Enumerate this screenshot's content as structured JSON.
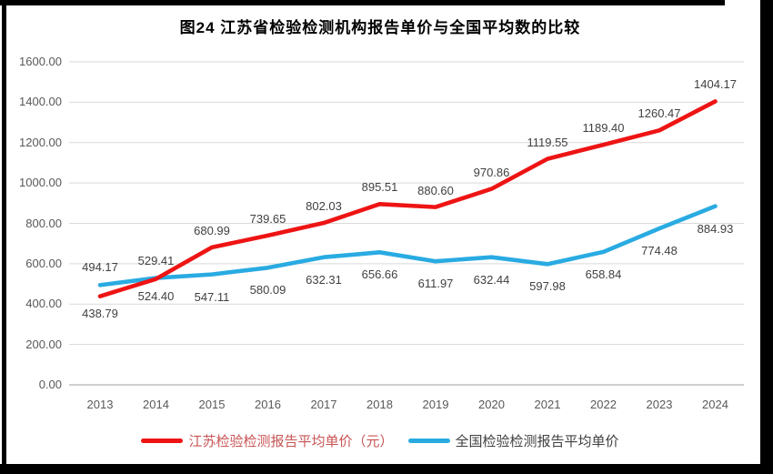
{
  "page": {
    "title": "图24  江苏省检验检测机构报告单价与全国平均数的比较"
  },
  "chart_data": {
    "type": "line",
    "title": "图24  江苏省检验检测机构报告单价与全国平均数的比较",
    "categories": [
      "2013",
      "2014",
      "2015",
      "2016",
      "2017",
      "2018",
      "2019",
      "2020",
      "2021",
      "2022",
      "2023",
      "2024"
    ],
    "series": [
      {
        "name": "江苏检验检测报告平均单价（元）",
        "color": "#ee1414",
        "legend_text_color": "#c85454",
        "values": [
          438.79,
          524.4,
          680.99,
          739.65,
          802.03,
          895.51,
          880.6,
          970.86,
          1119.55,
          1189.4,
          1260.47,
          1404.17
        ],
        "label_positions": [
          "below",
          "below",
          "above",
          "above",
          "above",
          "above",
          "above",
          "above",
          "above",
          "above",
          "above",
          "above"
        ],
        "offset_above": 26,
        "offset_below": 11
      },
      {
        "name": "全国检验检测报告平均单价",
        "color": "#29abe2",
        "legend_text_color": "#404040",
        "values": [
          494.17,
          529.41,
          547.11,
          580.09,
          632.31,
          656.66,
          611.97,
          632.44,
          597.98,
          658.84,
          774.48,
          884.93
        ],
        "label_positions": [
          "above",
          "above",
          "below",
          "below",
          "below",
          "below",
          "below",
          "below",
          "below",
          "below",
          "below",
          "below"
        ],
        "offset_above": 27,
        "offset_below": 17
      }
    ],
    "ylim": [
      0,
      1600
    ],
    "ytick_step": 200,
    "ytick_labels": [
      "0.00",
      "200.00",
      "400.00",
      "600.00",
      "800.00",
      "1000.00",
      "1200.00",
      "1400.00",
      "1600.00"
    ],
    "grid": true,
    "gridline_color": "#d9d9d9",
    "axisline_color": "#bfbfbf",
    "tick_text_color": "#595959",
    "data_label_color": "#404040",
    "legend_position": "bottom"
  }
}
